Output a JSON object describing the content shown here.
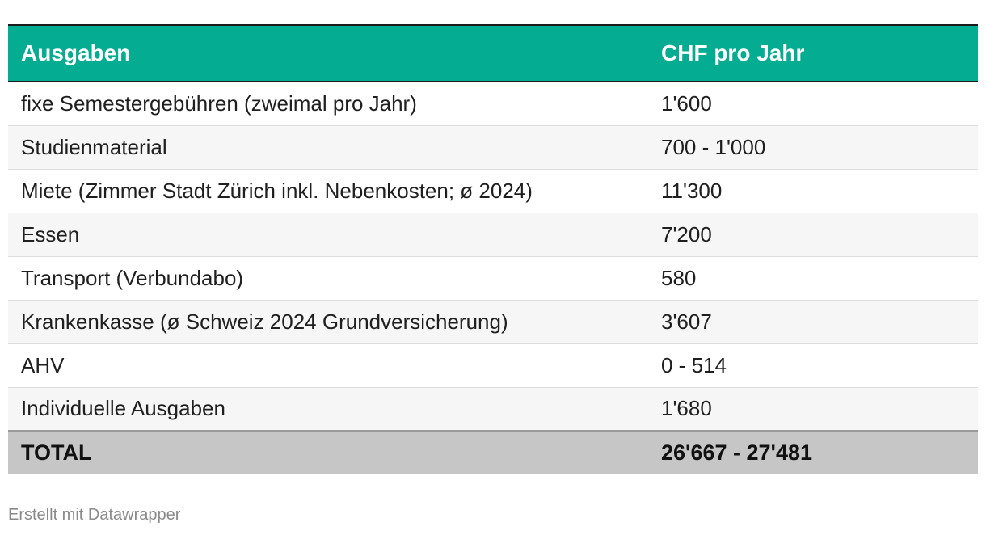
{
  "chart_data": {
    "type": "table",
    "columns": [
      "Ausgaben",
      "CHF pro Jahr"
    ],
    "rows": [
      [
        "fixe Semestergebühren (zweimal pro Jahr)",
        "1'600"
      ],
      [
        "Studienmaterial",
        "700 - 1'000"
      ],
      [
        "Miete (Zimmer Stadt Zürich inkl. Nebenkosten; ø 2024)",
        "11'300"
      ],
      [
        "Essen",
        "7'200"
      ],
      [
        "Transport (Verbundabo)",
        "580"
      ],
      [
        "Krankenkasse (ø Schweiz 2024 Grundversicherung)",
        "3'607"
      ],
      [
        "AHV",
        "0 - 514"
      ],
      [
        "Individuelle Ausgaben",
        "1'680"
      ]
    ],
    "total": [
      "TOTAL",
      "26'667 - 27'481"
    ],
    "header_color": "#04ad91",
    "total_row_color": "#c6c6c6"
  },
  "footer": {
    "credit": "Erstellt mit Datawrapper"
  }
}
